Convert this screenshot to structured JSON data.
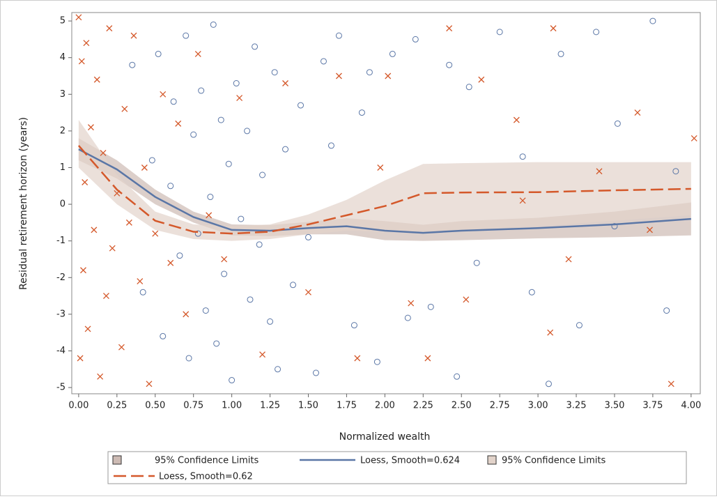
{
  "chart_data": {
    "type": "scatter",
    "xlabel": "Normalized wealth",
    "ylabel": "Residual retirement horizon (years)",
    "xlim": [
      -0.045,
      4.06
    ],
    "ylim": [
      -5.17,
      5.23
    ],
    "xticks": [
      {
        "value": 0,
        "label": "0.00"
      },
      {
        "value": 0.25,
        "label": "0.25"
      },
      {
        "value": 0.5,
        "label": "0.50"
      },
      {
        "value": 0.75,
        "label": "0.75"
      },
      {
        "value": 1,
        "label": "1.00"
      },
      {
        "value": 1.25,
        "label": "1.25"
      },
      {
        "value": 1.5,
        "label": "1.50"
      },
      {
        "value": 1.75,
        "label": "1.75"
      },
      {
        "value": 2,
        "label": "2.00"
      },
      {
        "value": 2.25,
        "label": "2.25"
      },
      {
        "value": 2.5,
        "label": "2.50"
      },
      {
        "value": 2.75,
        "label": "2.75"
      },
      {
        "value": 3,
        "label": "3.00"
      },
      {
        "value": 3.25,
        "label": "3.25"
      },
      {
        "value": 3.5,
        "label": "3.50"
      },
      {
        "value": 3.75,
        "label": "3.75"
      },
      {
        "value": 4,
        "label": "4.00"
      }
    ],
    "yticks": [
      5,
      4,
      3,
      2,
      1,
      0,
      -1,
      -2,
      -3,
      -4,
      -5
    ],
    "scatter": [
      {
        "color": "#5a76a6",
        "marker": "circle",
        "x": [
          0.35,
          0.42,
          0.48,
          0.52,
          0.55,
          0.6,
          0.62,
          0.66,
          0.7,
          0.72,
          0.75,
          0.78,
          0.8,
          0.83,
          0.86,
          0.88,
          0.9,
          0.93,
          0.95,
          0.98,
          1.0,
          1.03,
          1.06,
          1.1,
          1.12,
          1.15,
          1.18,
          1.2,
          1.25,
          1.28,
          1.3,
          1.35,
          1.4,
          1.45,
          1.5,
          1.55,
          1.6,
          1.65,
          1.7,
          1.8,
          1.85,
          1.9,
          1.95,
          2.05,
          2.15,
          2.2,
          2.3,
          2.42,
          2.47,
          2.55,
          2.6,
          2.75,
          2.9,
          2.96,
          3.07,
          3.15,
          3.27,
          3.38,
          3.5,
          3.52,
          3.75,
          3.84,
          3.9
        ],
        "y": [
          3.8,
          -2.4,
          1.2,
          4.1,
          -3.6,
          0.5,
          2.8,
          -1.4,
          4.6,
          -4.2,
          1.9,
          -0.8,
          3.1,
          -2.9,
          0.2,
          4.9,
          -3.8,
          2.3,
          -1.9,
          1.1,
          -4.8,
          3.3,
          -0.4,
          2.0,
          -2.6,
          4.3,
          -1.1,
          0.8,
          -3.2,
          3.6,
          -4.5,
          1.5,
          -2.2,
          2.7,
          -0.9,
          -4.6,
          3.9,
          1.6,
          4.6,
          -3.3,
          2.5,
          3.6,
          -4.3,
          4.1,
          -3.1,
          4.5,
          -2.8,
          3.8,
          -4.7,
          3.2,
          -1.6,
          4.7,
          1.3,
          -2.4,
          -4.9,
          4.1,
          -3.3,
          4.7,
          -0.6,
          2.2,
          5.0,
          -2.9,
          0.9
        ]
      },
      {
        "color": "#d4582a",
        "marker": "cross",
        "x": [
          0.0,
          0.01,
          0.02,
          0.03,
          0.04,
          0.05,
          0.06,
          0.08,
          0.1,
          0.12,
          0.14,
          0.16,
          0.18,
          0.2,
          0.22,
          0.25,
          0.28,
          0.3,
          0.33,
          0.36,
          0.4,
          0.43,
          0.46,
          0.5,
          0.55,
          0.6,
          0.65,
          0.7,
          0.78,
          0.85,
          0.95,
          1.05,
          1.2,
          1.35,
          1.5,
          1.7,
          1.82,
          1.97,
          2.02,
          2.17,
          2.28,
          2.42,
          2.53,
          2.63,
          2.86,
          2.9,
          3.08,
          3.1,
          3.2,
          3.4,
          3.65,
          3.73,
          3.87,
          4.02
        ],
        "y": [
          5.1,
          -4.2,
          3.9,
          -1.8,
          0.6,
          4.4,
          -3.4,
          2.1,
          -0.7,
          3.4,
          -4.7,
          1.4,
          -2.5,
          4.8,
          -1.2,
          0.3,
          -3.9,
          2.6,
          -0.5,
          4.6,
          -2.1,
          1.0,
          -4.9,
          -0.8,
          3.0,
          -1.6,
          2.2,
          -3.0,
          4.1,
          -0.3,
          -1.5,
          2.9,
          -4.1,
          3.3,
          -2.4,
          3.5,
          -4.2,
          1.0,
          3.5,
          -2.7,
          -4.2,
          4.8,
          -2.6,
          3.4,
          2.3,
          0.1,
          -3.5,
          4.8,
          -1.5,
          0.9,
          2.5,
          -0.7,
          -4.9,
          1.8
        ]
      }
    ],
    "bands": [
      {
        "name": "95% Confidence Limits",
        "color": "#cdbbb4",
        "x": [
          0,
          0.25,
          0.5,
          0.75,
          1.0,
          1.25,
          1.5,
          1.75,
          2.0,
          2.25,
          2.5,
          3.0,
          3.5,
          4.0
        ],
        "lower": [
          1.2,
          0.7,
          0.0,
          -0.5,
          -0.85,
          -0.87,
          -0.82,
          -0.82,
          -0.98,
          -1.0,
          -0.98,
          -0.93,
          -0.9,
          -0.85
        ],
        "upper": [
          1.8,
          1.2,
          0.4,
          -0.2,
          -0.55,
          -0.57,
          -0.48,
          -0.38,
          -0.46,
          -0.56,
          -0.46,
          -0.37,
          -0.2,
          0.05
        ]
      },
      {
        "name": "95% Confidence Limits",
        "color": "#e2d3ca",
        "x": [
          0,
          0.25,
          0.5,
          0.75,
          1.0,
          1.25,
          1.5,
          1.75,
          2.0,
          2.25,
          2.5,
          3.0,
          3.5,
          4.0
        ],
        "lower": [
          1.0,
          0.0,
          -0.7,
          -0.95,
          -1.0,
          -0.95,
          -0.82,
          -0.72,
          -0.75,
          -0.72,
          -0.7,
          -0.6,
          -0.45,
          -0.3
        ],
        "upper": [
          2.3,
          0.8,
          -0.2,
          -0.55,
          -0.6,
          -0.55,
          -0.28,
          0.12,
          0.65,
          1.1,
          1.12,
          1.15,
          1.15,
          1.15
        ]
      }
    ],
    "lines": [
      {
        "name": "Loess, Smooth=0.624",
        "color": "#5a76a6",
        "dash": false,
        "x": [
          0,
          0.25,
          0.5,
          0.75,
          1.0,
          1.25,
          1.5,
          1.75,
          2.0,
          2.25,
          2.5,
          3.0,
          3.5,
          4.0
        ],
        "y": [
          1.5,
          0.95,
          0.2,
          -0.35,
          -0.7,
          -0.72,
          -0.65,
          -0.6,
          -0.72,
          -0.78,
          -0.72,
          -0.65,
          -0.55,
          -0.4
        ]
      },
      {
        "name": "Loess, Smooth=0.62",
        "color": "#d4582a",
        "dash": true,
        "x": [
          0,
          0.25,
          0.5,
          0.75,
          1.0,
          1.25,
          1.5,
          1.75,
          2.0,
          2.25,
          2.5,
          3.0,
          3.5,
          4.0
        ],
        "y": [
          1.6,
          0.4,
          -0.45,
          -0.75,
          -0.8,
          -0.75,
          -0.55,
          -0.3,
          -0.05,
          0.3,
          0.32,
          0.33,
          0.38,
          0.42
        ]
      }
    ]
  }
}
